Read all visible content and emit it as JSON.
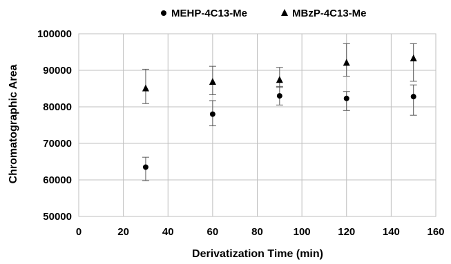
{
  "chart_data": {
    "type": "scatter",
    "xlabel": "Derivatization Time (min)",
    "ylabel": "Chromatographic Area",
    "xlim": [
      0,
      160
    ],
    "ylim": [
      50000,
      100000
    ],
    "x_ticks": [
      0,
      20,
      40,
      60,
      80,
      100,
      120,
      140,
      160
    ],
    "y_ticks": [
      50000,
      60000,
      70000,
      80000,
      90000,
      100000
    ],
    "x_tick_labels": [
      "0",
      "20",
      "40",
      "60",
      "80",
      "100",
      "120",
      "140",
      "160"
    ],
    "y_tick_labels": [
      "50000",
      "60000",
      "70000",
      "80000",
      "90000",
      "100000"
    ],
    "grid": true,
    "legend_position": "top-center",
    "series": [
      {
        "name": "MEHP-4C13-Me",
        "marker": "circle",
        "color": "#000000",
        "x": [
          30,
          60,
          90,
          120,
          150
        ],
        "y": [
          63500,
          78000,
          83000,
          82300,
          82800
        ],
        "error_low": [
          59800,
          74800,
          80500,
          79000,
          77700
        ],
        "error_high": [
          66200,
          81700,
          85600,
          84200,
          86000
        ]
      },
      {
        "name": "MBzP-4C13-Me",
        "marker": "triangle",
        "color": "#000000",
        "x": [
          30,
          60,
          90,
          120,
          150
        ],
        "y": [
          85000,
          86800,
          87300,
          92000,
          93200
        ],
        "error_low": [
          80900,
          83300,
          85300,
          88400,
          87000
        ],
        "error_high": [
          90300,
          91100,
          90800,
          97300,
          97300
        ]
      }
    ]
  }
}
